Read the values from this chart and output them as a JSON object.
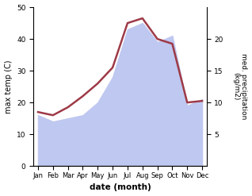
{
  "months": [
    "Jan",
    "Feb",
    "Mar",
    "Apr",
    "May",
    "Jun",
    "Jul",
    "Aug",
    "Sep",
    "Oct",
    "Nov",
    "Dec"
  ],
  "month_positions": [
    0,
    1,
    2,
    3,
    4,
    5,
    6,
    7,
    8,
    9,
    10,
    11
  ],
  "temperature": [
    17.0,
    16.0,
    18.5,
    22.0,
    26.0,
    31.0,
    45.0,
    46.5,
    40.0,
    38.5,
    20.0,
    20.5
  ],
  "precipitation": [
    8.0,
    7.0,
    7.5,
    8.0,
    10.0,
    14.0,
    21.5,
    22.5,
    19.5,
    20.5,
    9.5,
    10.5
  ],
  "temp_color": "#9e3a47",
  "precip_fill_color": "#bfc8f0",
  "xlabel": "date (month)",
  "ylabel_left": "max temp (C)",
  "ylabel_right": "med. precipitation\n(kg/m2)",
  "ylim_left": [
    0,
    50
  ],
  "ylim_right": [
    0,
    25
  ],
  "yticks_left": [
    0,
    10,
    20,
    30,
    40,
    50
  ],
  "yticks_right": [
    5,
    10,
    15,
    20
  ],
  "bg_color": "#ffffff",
  "line_width": 1.8
}
